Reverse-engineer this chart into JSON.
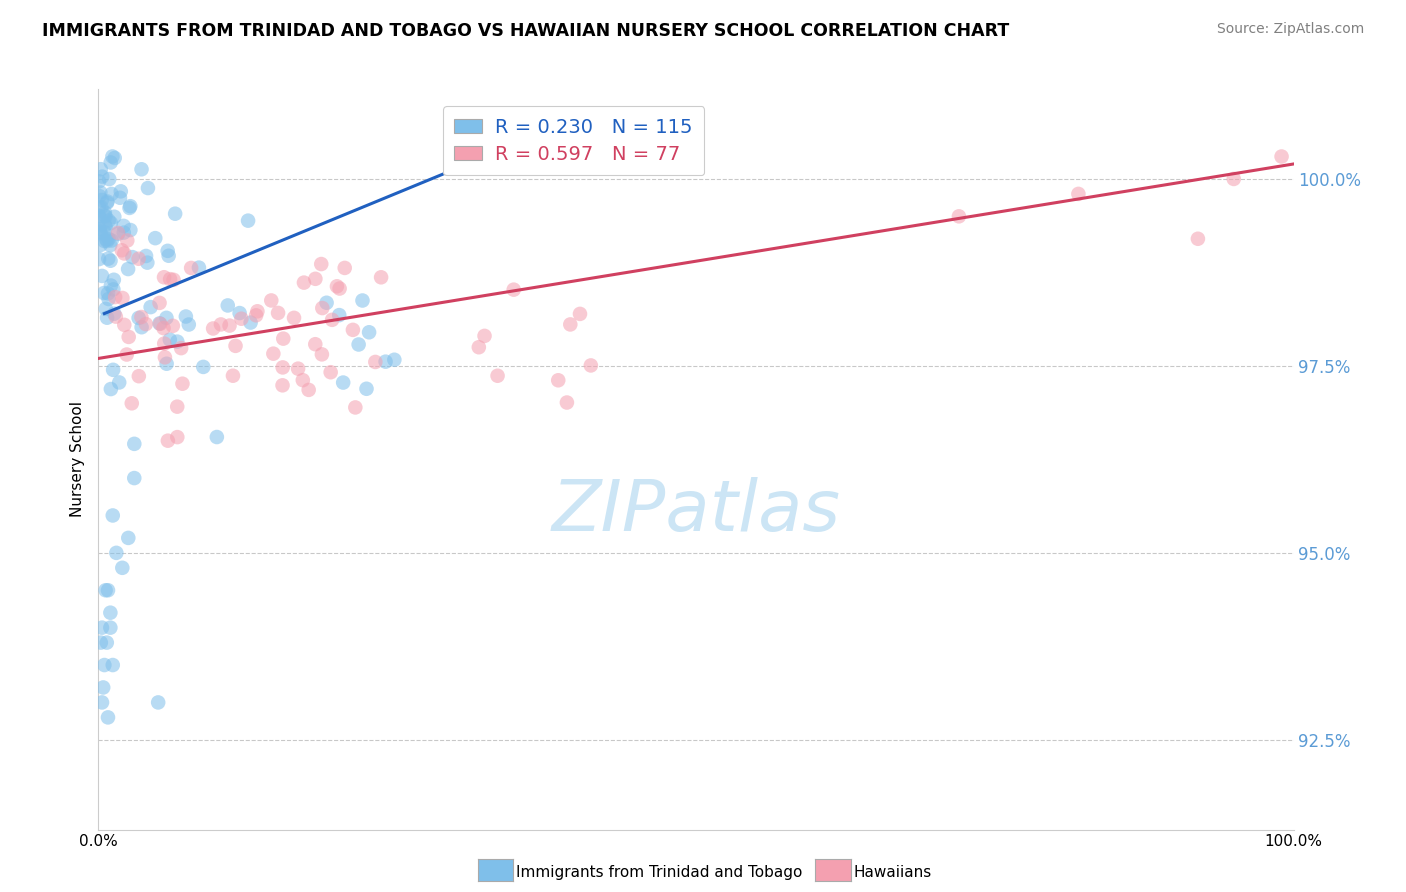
{
  "title": "IMMIGRANTS FROM TRINIDAD AND TOBAGO VS HAWAIIAN NURSERY SCHOOL CORRELATION CHART",
  "source": "Source: ZipAtlas.com",
  "ylabel": "Nursery School",
  "y_ticks": [
    92.5,
    95.0,
    97.5,
    100.0
  ],
  "y_tick_labels": [
    "92.5%",
    "95.0%",
    "97.5%",
    "100.0%"
  ],
  "x_min": 0.0,
  "x_max": 100.0,
  "y_min": 91.3,
  "y_max": 101.2,
  "blue_R": 0.23,
  "blue_N": 115,
  "pink_R": 0.597,
  "pink_N": 77,
  "blue_color": "#7fbfea",
  "pink_color": "#f4a0b0",
  "blue_line_color": "#2060c0",
  "pink_line_color": "#d04060",
  "legend_blue_label": "Immigrants from Trinidad and Tobago",
  "legend_pink_label": "Hawaiians",
  "blue_line_x0": 0.5,
  "blue_line_y0": 98.2,
  "blue_line_x1": 40.0,
  "blue_line_y1": 100.8,
  "pink_line_x0": 0.0,
  "pink_line_y0": 97.6,
  "pink_line_x1": 100.0,
  "pink_line_y1": 100.2,
  "watermark_text": "ZIPatlas",
  "watermark_color": "#cce5f5"
}
